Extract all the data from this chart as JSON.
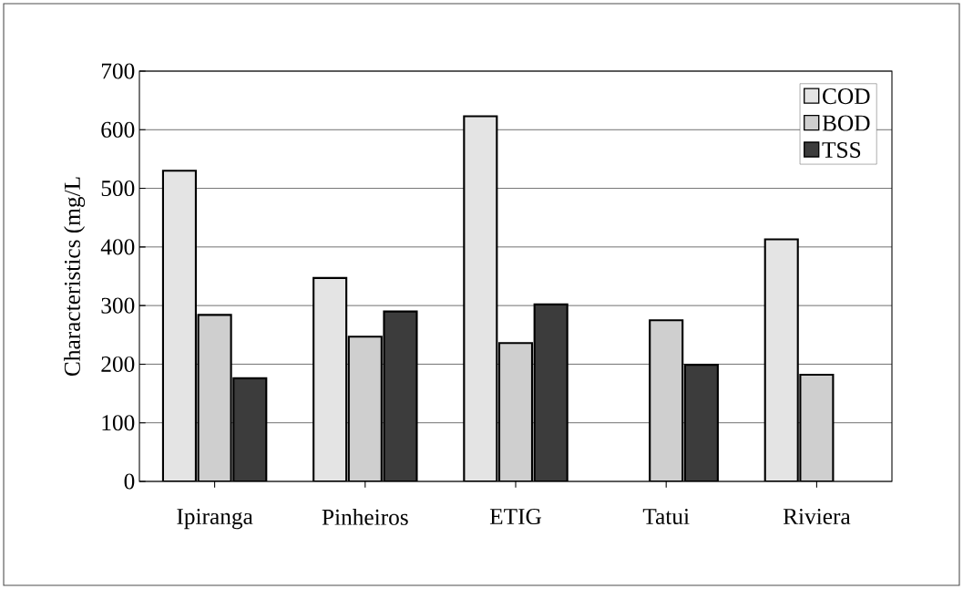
{
  "chart_data": {
    "type": "bar",
    "ylabel": "Characteristics (mg/L",
    "categories": [
      "Ipiranga",
      "Pinheiros",
      "ETIG",
      "Tatui",
      "Riviera"
    ],
    "series": [
      {
        "name": "COD",
        "color": "#e4e4e4",
        "values": [
          530,
          347,
          623,
          null,
          413
        ]
      },
      {
        "name": "BOD",
        "color": "#cfcfcf",
        "values": [
          284,
          247,
          236,
          275,
          182
        ]
      },
      {
        "name": "TSS",
        "color": "#3c3c3c",
        "values": [
          176,
          290,
          302,
          199,
          null
        ]
      }
    ],
    "ylim": [
      0,
      700
    ],
    "yticks": [
      0,
      100,
      200,
      300,
      400,
      500,
      600,
      700
    ],
    "grid": "y",
    "legend": "top right"
  }
}
